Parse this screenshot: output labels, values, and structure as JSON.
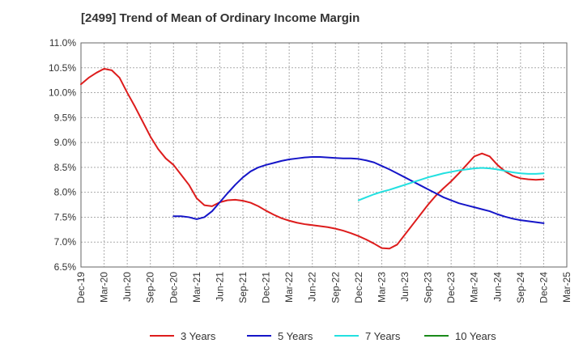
{
  "chart_data": {
    "type": "line",
    "title": "[2499]  Trend of Mean of Ordinary Income Margin",
    "xlabel": "",
    "ylabel": "",
    "x_ticks": [
      "Dec-19",
      "Mar-20",
      "Jun-20",
      "Sep-20",
      "Dec-20",
      "Mar-21",
      "Jun-21",
      "Sep-21",
      "Dec-21",
      "Mar-22",
      "Jun-22",
      "Sep-22",
      "Dec-22",
      "Mar-23",
      "Jun-23",
      "Sep-23",
      "Dec-23",
      "Mar-24",
      "Jun-24",
      "Sep-24",
      "Dec-24",
      "Mar-25"
    ],
    "y_ticks": [
      "6.5%",
      "7.0%",
      "7.5%",
      "8.0%",
      "8.5%",
      "9.0%",
      "9.5%",
      "10.0%",
      "10.5%",
      "11.0%"
    ],
    "ylim": [
      6.5,
      11.0
    ],
    "grid": true,
    "legend_position": "bottom",
    "series": [
      {
        "name": "3 Years",
        "color": "#dd1c1c",
        "points": [
          [
            "Dec-19",
            10.17
          ],
          [
            "Jan-20",
            10.3
          ],
          [
            "Feb-20",
            10.4
          ],
          [
            "Mar-20",
            10.48
          ],
          [
            "Apr-20",
            10.45
          ],
          [
            "May-20",
            10.3
          ],
          [
            "Jun-20",
            10.0
          ],
          [
            "Jul-20",
            9.72
          ],
          [
            "Aug-20",
            9.42
          ],
          [
            "Sep-20",
            9.12
          ],
          [
            "Oct-20",
            8.87
          ],
          [
            "Nov-20",
            8.68
          ],
          [
            "Dec-20",
            8.55
          ],
          [
            "Jan-21",
            8.35
          ],
          [
            "Feb-21",
            8.15
          ],
          [
            "Mar-21",
            7.88
          ],
          [
            "Apr-21",
            7.74
          ],
          [
            "May-21",
            7.72
          ],
          [
            "Jun-21",
            7.8
          ],
          [
            "Jul-21",
            7.84
          ],
          [
            "Aug-21",
            7.85
          ],
          [
            "Sep-21",
            7.83
          ],
          [
            "Oct-21",
            7.79
          ],
          [
            "Nov-21",
            7.72
          ],
          [
            "Dec-21",
            7.63
          ],
          [
            "Jan-22",
            7.55
          ],
          [
            "Feb-22",
            7.48
          ],
          [
            "Mar-22",
            7.43
          ],
          [
            "Apr-22",
            7.39
          ],
          [
            "May-22",
            7.36
          ],
          [
            "Jun-22",
            7.34
          ],
          [
            "Jul-22",
            7.32
          ],
          [
            "Aug-22",
            7.3
          ],
          [
            "Sep-22",
            7.27
          ],
          [
            "Oct-22",
            7.23
          ],
          [
            "Nov-22",
            7.18
          ],
          [
            "Dec-22",
            7.12
          ],
          [
            "Jan-23",
            7.05
          ],
          [
            "Feb-23",
            6.97
          ],
          [
            "Mar-23",
            6.88
          ],
          [
            "Apr-23",
            6.87
          ],
          [
            "May-23",
            6.95
          ],
          [
            "Jun-23",
            7.15
          ],
          [
            "Jul-23",
            7.35
          ],
          [
            "Aug-23",
            7.55
          ],
          [
            "Sep-23",
            7.75
          ],
          [
            "Oct-23",
            7.93
          ],
          [
            "Nov-23",
            8.08
          ],
          [
            "Dec-23",
            8.22
          ],
          [
            "Jan-24",
            8.38
          ],
          [
            "Feb-24",
            8.55
          ],
          [
            "Mar-24",
            8.72
          ],
          [
            "Apr-24",
            8.78
          ],
          [
            "May-24",
            8.72
          ],
          [
            "Jun-24",
            8.55
          ],
          [
            "Jul-24",
            8.42
          ],
          [
            "Aug-24",
            8.33
          ],
          [
            "Sep-24",
            8.28
          ],
          [
            "Oct-24",
            8.26
          ],
          [
            "Nov-24",
            8.25
          ],
          [
            "Dec-24",
            8.26
          ]
        ]
      },
      {
        "name": "5 Years",
        "color": "#1515c8",
        "points": [
          [
            "Dec-20",
            7.52
          ],
          [
            "Jan-21",
            7.52
          ],
          [
            "Feb-21",
            7.5
          ],
          [
            "Mar-21",
            7.46
          ],
          [
            "Apr-21",
            7.5
          ],
          [
            "May-21",
            7.62
          ],
          [
            "Jun-21",
            7.8
          ],
          [
            "Jul-21",
            7.98
          ],
          [
            "Aug-21",
            8.15
          ],
          [
            "Sep-21",
            8.3
          ],
          [
            "Oct-21",
            8.42
          ],
          [
            "Nov-21",
            8.5
          ],
          [
            "Dec-21",
            8.55
          ],
          [
            "Jan-22",
            8.59
          ],
          [
            "Feb-22",
            8.63
          ],
          [
            "Mar-22",
            8.66
          ],
          [
            "Apr-22",
            8.68
          ],
          [
            "May-22",
            8.7
          ],
          [
            "Jun-22",
            8.71
          ],
          [
            "Jul-22",
            8.71
          ],
          [
            "Aug-22",
            8.7
          ],
          [
            "Sep-22",
            8.69
          ],
          [
            "Oct-22",
            8.68
          ],
          [
            "Nov-22",
            8.68
          ],
          [
            "Dec-22",
            8.67
          ],
          [
            "Jan-23",
            8.64
          ],
          [
            "Feb-23",
            8.6
          ],
          [
            "Mar-23",
            8.53
          ],
          [
            "Apr-23",
            8.46
          ],
          [
            "May-23",
            8.38
          ],
          [
            "Jun-23",
            8.3
          ],
          [
            "Jul-23",
            8.22
          ],
          [
            "Aug-23",
            8.14
          ],
          [
            "Sep-23",
            8.06
          ],
          [
            "Oct-23",
            7.98
          ],
          [
            "Nov-23",
            7.9
          ],
          [
            "Dec-23",
            7.84
          ],
          [
            "Jan-24",
            7.78
          ],
          [
            "Feb-24",
            7.74
          ],
          [
            "Mar-24",
            7.7
          ],
          [
            "Apr-24",
            7.66
          ],
          [
            "May-24",
            7.62
          ],
          [
            "Jun-24",
            7.56
          ],
          [
            "Jul-24",
            7.51
          ],
          [
            "Aug-24",
            7.47
          ],
          [
            "Sep-24",
            7.44
          ],
          [
            "Oct-24",
            7.42
          ],
          [
            "Nov-24",
            7.4
          ],
          [
            "Dec-24",
            7.38
          ]
        ]
      },
      {
        "name": "7 Years",
        "color": "#22e0e0",
        "points": [
          [
            "Dec-22",
            7.84
          ],
          [
            "Jan-23",
            7.9
          ],
          [
            "Feb-23",
            7.96
          ],
          [
            "Mar-23",
            8.01
          ],
          [
            "Apr-23",
            8.05
          ],
          [
            "May-23",
            8.1
          ],
          [
            "Jun-23",
            8.15
          ],
          [
            "Jul-23",
            8.2
          ],
          [
            "Aug-23",
            8.25
          ],
          [
            "Sep-23",
            8.3
          ],
          [
            "Oct-23",
            8.34
          ],
          [
            "Nov-23",
            8.38
          ],
          [
            "Dec-23",
            8.41
          ],
          [
            "Jan-24",
            8.44
          ],
          [
            "Feb-24",
            8.46
          ],
          [
            "Mar-24",
            8.48
          ],
          [
            "Apr-24",
            8.49
          ],
          [
            "May-24",
            8.48
          ],
          [
            "Jun-24",
            8.46
          ],
          [
            "Jul-24",
            8.43
          ],
          [
            "Aug-24",
            8.4
          ],
          [
            "Sep-24",
            8.38
          ],
          [
            "Oct-24",
            8.37
          ],
          [
            "Nov-24",
            8.37
          ],
          [
            "Dec-24",
            8.38
          ]
        ]
      },
      {
        "name": "10 Years",
        "color": "#1a8a1a",
        "points": []
      }
    ]
  }
}
